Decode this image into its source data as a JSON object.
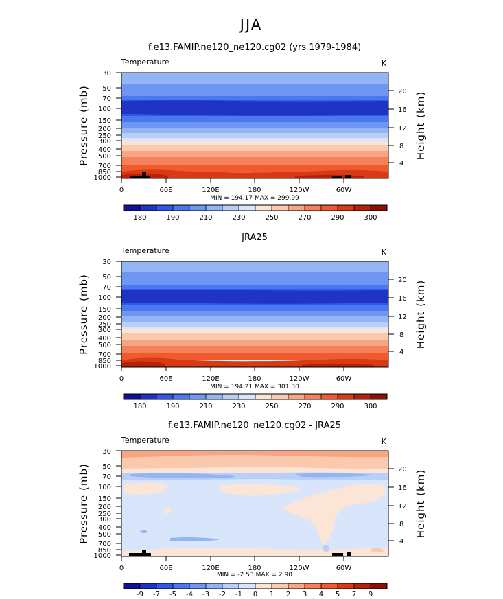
{
  "title": "JJA",
  "chart_data": [
    {
      "type": "heatmap",
      "title": "f.e13.FAMIP.ne120_ne120.cg02 (yrs 1979-1984)",
      "left_label": "Temperature",
      "right_label": "K",
      "ylabel": "Pressure  (mb)",
      "ylabel_right": "Height  (km)",
      "x_ticks": [
        "0",
        "60E",
        "120E",
        "180",
        "120W",
        "60W"
      ],
      "x_values": [
        0,
        60,
        120,
        180,
        240,
        300
      ],
      "xlim": [
        0,
        360
      ],
      "y_ticks": [
        "30",
        "50",
        "70",
        "100",
        "150",
        "200",
        "250",
        "300",
        "400",
        "500",
        "700",
        "850",
        "1000"
      ],
      "y_values": [
        30,
        50,
        70,
        100,
        150,
        200,
        250,
        300,
        400,
        500,
        700,
        850,
        1000
      ],
      "ylim": [
        30,
        1000
      ],
      "y_scale": "log",
      "height_ticks": [
        "20",
        "16",
        "12",
        "8",
        "4"
      ],
      "height_values": [
        20,
        16,
        12,
        8,
        4
      ],
      "minmax_text": "MIN = 194.17   MAX = 299.99",
      "min": 194.17,
      "max": 299.99,
      "colorbar_labels": [
        "180",
        "190",
        "210",
        "230",
        "250",
        "270",
        "290",
        "300"
      ],
      "colorbar_colors": [
        "#10109a",
        "#1f33c4",
        "#2f58e8",
        "#4a78ee",
        "#6e97f3",
        "#93b5f6",
        "#b8cff8",
        "#d8e5fa",
        "#fbe5d6",
        "#fbc9ad",
        "#f8a581",
        "#f5805a",
        "#ef5b2f",
        "#d93a14",
        "#b52208",
        "#8a1003"
      ],
      "bands": [
        {
          "from": 30,
          "to": 42,
          "value": 230
        },
        {
          "from": 42,
          "to": 58,
          "value": 220
        },
        {
          "from": 58,
          "to": 78,
          "value": 215
        },
        {
          "from": 78,
          "to": 135,
          "value": 205
        },
        {
          "from": 135,
          "to": 170,
          "value": 215
        },
        {
          "from": 170,
          "to": 205,
          "value": 220
        },
        {
          "from": 205,
          "to": 240,
          "value": 225
        },
        {
          "from": 240,
          "to": 280,
          "value": 235
        },
        {
          "from": 280,
          "to": 330,
          "value": 245
        },
        {
          "from": 330,
          "to": 380,
          "value": 255
        },
        {
          "from": 380,
          "to": 460,
          "value": 262
        },
        {
          "from": 460,
          "to": 560,
          "value": 268
        },
        {
          "from": 560,
          "to": 700,
          "value": 275
        },
        {
          "from": 700,
          "to": 850,
          "value": 282
        },
        {
          "from": 850,
          "to": 960,
          "value": 288
        },
        {
          "from": 960,
          "to": 1000,
          "value": 292
        }
      ],
      "topography": true
    },
    {
      "type": "heatmap",
      "title": "JRA25",
      "left_label": "Temperature",
      "right_label": "K",
      "ylabel": "Pressure  (mb)",
      "ylabel_right": "Height  (km)",
      "x_ticks": [
        "0",
        "60E",
        "120E",
        "180",
        "120W",
        "60W"
      ],
      "x_values": [
        0,
        60,
        120,
        180,
        240,
        300
      ],
      "xlim": [
        0,
        360
      ],
      "y_ticks": [
        "30",
        "50",
        "70",
        "100",
        "150",
        "200",
        "250",
        "300",
        "400",
        "500",
        "700",
        "850",
        "1000"
      ],
      "y_values": [
        30,
        50,
        70,
        100,
        150,
        200,
        250,
        300,
        400,
        500,
        700,
        850,
        1000
      ],
      "ylim": [
        30,
        1000
      ],
      "y_scale": "log",
      "height_ticks": [
        "20",
        "16",
        "12",
        "8",
        "4"
      ],
      "height_values": [
        20,
        16,
        12,
        8,
        4
      ],
      "minmax_text": "MIN = 194.21   MAX = 301.30",
      "min": 194.21,
      "max": 301.3,
      "colorbar_labels": [
        "180",
        "190",
        "210",
        "230",
        "250",
        "270",
        "290",
        "300"
      ],
      "colorbar_colors": [
        "#10109a",
        "#1f33c4",
        "#2f58e8",
        "#4a78ee",
        "#6e97f3",
        "#93b5f6",
        "#b8cff8",
        "#d8e5fa",
        "#fbe5d6",
        "#fbc9ad",
        "#f8a581",
        "#f5805a",
        "#ef5b2f",
        "#d93a14",
        "#b52208",
        "#8a1003"
      ],
      "bands": [
        {
          "from": 30,
          "to": 42,
          "value": 228
        },
        {
          "from": 42,
          "to": 58,
          "value": 220
        },
        {
          "from": 58,
          "to": 78,
          "value": 214
        },
        {
          "from": 78,
          "to": 135,
          "value": 205
        },
        {
          "from": 135,
          "to": 170,
          "value": 214
        },
        {
          "from": 170,
          "to": 205,
          "value": 220
        },
        {
          "from": 205,
          "to": 240,
          "value": 226
        },
        {
          "from": 240,
          "to": 280,
          "value": 235
        },
        {
          "from": 280,
          "to": 330,
          "value": 245
        },
        {
          "from": 330,
          "to": 380,
          "value": 255
        },
        {
          "from": 380,
          "to": 460,
          "value": 262
        },
        {
          "from": 460,
          "to": 560,
          "value": 268
        },
        {
          "from": 560,
          "to": 700,
          "value": 275
        },
        {
          "from": 700,
          "to": 850,
          "value": 282
        },
        {
          "from": 850,
          "to": 960,
          "value": 289
        },
        {
          "from": 960,
          "to": 1000,
          "value": 294
        }
      ],
      "topography": false
    },
    {
      "type": "heatmap",
      "title": "f.e13.FAMIP.ne120_ne120.cg02 - JRA25",
      "left_label": "Temperature",
      "right_label": "K",
      "ylabel": "Pressure  (mb)",
      "ylabel_right": "Height  (km)",
      "x_ticks": [
        "0",
        "60E",
        "120E",
        "180",
        "120W",
        "60W"
      ],
      "x_values": [
        0,
        60,
        120,
        180,
        240,
        300
      ],
      "xlim": [
        0,
        360
      ],
      "y_ticks": [
        "30",
        "50",
        "70",
        "100",
        "150",
        "200",
        "250",
        "300",
        "400",
        "500",
        "700",
        "850",
        "1000"
      ],
      "y_values": [
        30,
        50,
        70,
        100,
        150,
        200,
        250,
        300,
        400,
        500,
        700,
        850,
        1000
      ],
      "ylim": [
        30,
        1000
      ],
      "y_scale": "log",
      "height_ticks": [
        "20",
        "16",
        "12",
        "8",
        "4"
      ],
      "height_values": [
        20,
        16,
        12,
        8,
        4
      ],
      "minmax_text": "MIN = -2.53   MAX =   2.90",
      "min": -2.53,
      "max": 2.9,
      "colorbar_labels": [
        "-9",
        "-7",
        "-5",
        "-4",
        "-3",
        "-2",
        "-1",
        "0",
        "1",
        "2",
        "3",
        "4",
        "5",
        "7",
        "9"
      ],
      "colorbar_colors": [
        "#10109a",
        "#1f33c4",
        "#2f58e8",
        "#4a78ee",
        "#6e97f3",
        "#93b5f6",
        "#b8cff8",
        "#d8e5fa",
        "#fbe5d6",
        "#fbc9ad",
        "#f8a581",
        "#f5805a",
        "#ef5b2f",
        "#d93a14",
        "#b52208",
        "#8a1003"
      ],
      "bands": [
        {
          "from": 30,
          "to": 36,
          "value": 2.2
        },
        {
          "from": 36,
          "to": 48,
          "value": 1.5
        },
        {
          "from": 48,
          "to": 62,
          "value": 0.5
        },
        {
          "from": 62,
          "to": 80,
          "value": -1.5
        },
        {
          "from": 80,
          "to": 1000,
          "value": -0.5
        }
      ],
      "topography": true
    }
  ]
}
